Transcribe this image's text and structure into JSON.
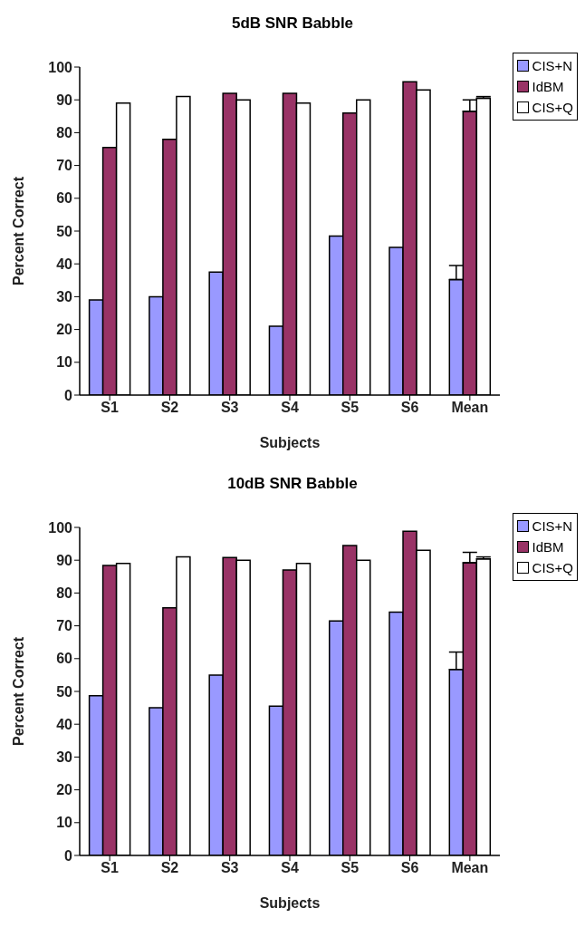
{
  "chart_data": [
    {
      "type": "bar",
      "title": "5dB SNR Babble",
      "xlabel": "Subjects",
      "ylabel": "Percent Correct",
      "categories": [
        "S1",
        "S2",
        "S3",
        "S4",
        "S5",
        "S6",
        "Mean"
      ],
      "series": [
        {
          "name": "CIS+N",
          "color": "#9999ff",
          "values": [
            29,
            30,
            37.5,
            21,
            48.5,
            45,
            35.2
          ],
          "errors": [
            null,
            null,
            null,
            null,
            null,
            null,
            [
              35.2,
              39.5
            ]
          ]
        },
        {
          "name": "IdBM",
          "color": "#993366",
          "values": [
            75.5,
            78,
            92,
            92,
            86,
            95.5,
            86.5
          ],
          "errors": [
            null,
            null,
            null,
            null,
            null,
            null,
            [
              86.5,
              90
            ]
          ]
        },
        {
          "name": "CIS+Q",
          "color": "#ffffff",
          "values": [
            89,
            91,
            90,
            89,
            90,
            93,
            90.5
          ],
          "errors": [
            null,
            null,
            null,
            null,
            null,
            null,
            [
              90.5,
              91
            ]
          ]
        }
      ],
      "ylim": [
        0,
        100
      ],
      "yticks": [
        0,
        10,
        20,
        30,
        40,
        50,
        60,
        70,
        80,
        90,
        100
      ],
      "grid": false,
      "legend": "top right"
    },
    {
      "type": "bar",
      "title": "10dB SNR Babble",
      "xlabel": "Subjects",
      "ylabel": "Percent Correct",
      "categories": [
        "S1",
        "S2",
        "S3",
        "S4",
        "S5",
        "S6",
        "Mean"
      ],
      "series": [
        {
          "name": "CIS+N",
          "color": "#9999ff",
          "values": [
            48.7,
            45,
            55,
            45.5,
            71.5,
            74.2,
            56.7
          ],
          "errors": [
            null,
            null,
            null,
            null,
            null,
            null,
            [
              56.7,
              62
            ]
          ]
        },
        {
          "name": "IdBM",
          "color": "#993366",
          "values": [
            88.4,
            75.5,
            90.8,
            87,
            94.5,
            98.8,
            89.2
          ],
          "errors": [
            null,
            null,
            null,
            null,
            null,
            null,
            [
              89.2,
              92.4
            ]
          ]
        },
        {
          "name": "CIS+Q",
          "color": "#ffffff",
          "values": [
            89,
            91,
            90,
            89,
            90,
            93,
            90.4
          ],
          "errors": [
            null,
            null,
            null,
            null,
            null,
            null,
            [
              90.4,
              91
            ]
          ]
        }
      ],
      "ylim": [
        0,
        100
      ],
      "yticks": [
        0,
        10,
        20,
        30,
        40,
        50,
        60,
        70,
        80,
        90,
        100
      ],
      "grid": false,
      "legend": "top right"
    }
  ]
}
